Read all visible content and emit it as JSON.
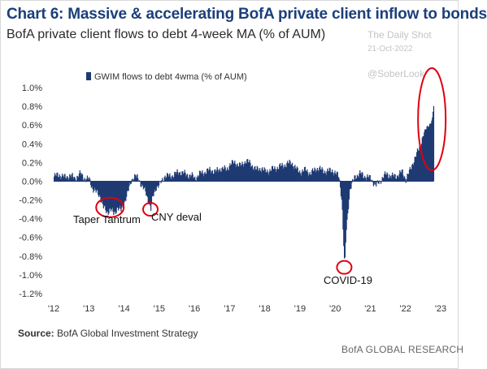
{
  "header": {
    "title": "Chart 6: Massive & accelerating BofA private client inflow to bonds",
    "subtitle": "BofA private client flows to debt 4-week MA (% of AUM)"
  },
  "watermark": {
    "line1": "The Daily Shot",
    "line2": "21-Oct-2022",
    "line3": "@SoberLook"
  },
  "footer": {
    "source_label": "Source:",
    "source_text": "BofA Global Investment Strategy",
    "brand": "BofA GLOBAL RESEARCH"
  },
  "colors": {
    "series": "#1f3a73",
    "title": "#1c3f7a",
    "highlight": "#e0000f"
  },
  "chart_data": {
    "type": "area",
    "title": "Chart 6: Massive & accelerating BofA private client inflow to bonds",
    "subtitle": "BofA private client flows to debt 4-week MA (% of AUM)",
    "xlabel": "",
    "ylabel": "",
    "x_ticks": [
      "'12",
      "'13",
      "'14",
      "'15",
      "'16",
      "'17",
      "'18",
      "'19",
      "'20",
      "'21",
      "'22",
      "'23"
    ],
    "y_ticks": [
      "1.0%",
      "0.8%",
      "0.6%",
      "0.4%",
      "0.2%",
      "0.0%",
      "-0.2%",
      "-0.4%",
      "-0.6%",
      "-0.8%",
      "-1.0%",
      "-1.2%"
    ],
    "ylim": [
      -1.2,
      1.0
    ],
    "xlim": [
      2012,
      2023
    ],
    "grid": false,
    "legend_position": "top-left",
    "series": [
      {
        "name": "GWIM flows to debt 4wma (% of AUM)",
        "x": [
          2012.0,
          2012.15,
          2012.3,
          2012.45,
          2012.6,
          2012.75,
          2012.9,
          2013.0,
          2013.1,
          2013.2,
          2013.3,
          2013.4,
          2013.5,
          2013.6,
          2013.7,
          2013.8,
          2013.9,
          2014.0,
          2014.1,
          2014.2,
          2014.3,
          2014.4,
          2014.5,
          2014.6,
          2014.7,
          2014.75,
          2014.8,
          2014.9,
          2015.0,
          2015.15,
          2015.3,
          2015.45,
          2015.6,
          2015.75,
          2015.9,
          2016.0,
          2016.15,
          2016.3,
          2016.45,
          2016.6,
          2016.75,
          2016.9,
          2017.0,
          2017.15,
          2017.3,
          2017.45,
          2017.6,
          2017.75,
          2017.9,
          2018.0,
          2018.15,
          2018.3,
          2018.45,
          2018.6,
          2018.75,
          2018.9,
          2019.0,
          2019.15,
          2019.3,
          2019.45,
          2019.6,
          2019.75,
          2019.9,
          2020.0,
          2020.1,
          2020.18,
          2020.22,
          2020.26,
          2020.3,
          2020.4,
          2020.55,
          2020.7,
          2020.85,
          2021.0,
          2021.15,
          2021.3,
          2021.45,
          2021.6,
          2021.75,
          2021.9,
          2022.0,
          2022.1,
          2022.2,
          2022.3,
          2022.4,
          2022.5,
          2022.6,
          2022.7,
          2022.75,
          2022.8
        ],
        "values": [
          0.05,
          0.07,
          0.04,
          0.06,
          0.03,
          0.08,
          0.02,
          0.02,
          -0.08,
          -0.12,
          -0.15,
          -0.28,
          -0.33,
          -0.3,
          -0.35,
          -0.28,
          -0.32,
          -0.22,
          -0.12,
          0.02,
          0.05,
          0.03,
          -0.05,
          -0.12,
          -0.22,
          -0.3,
          -0.18,
          -0.06,
          -0.04,
          0.06,
          0.05,
          0.08,
          0.1,
          0.07,
          0.06,
          0.03,
          0.08,
          0.1,
          0.12,
          0.1,
          0.14,
          0.12,
          0.18,
          0.2,
          0.16,
          0.22,
          0.18,
          0.12,
          0.14,
          0.1,
          0.12,
          0.14,
          0.16,
          0.18,
          0.2,
          0.12,
          0.1,
          0.12,
          0.08,
          0.14,
          0.12,
          0.1,
          0.12,
          0.08,
          0.05,
          -0.2,
          -0.6,
          -0.92,
          -0.55,
          -0.1,
          0.05,
          0.08,
          0.05,
          0.03,
          -0.05,
          0.02,
          0.08,
          0.05,
          0.06,
          0.1,
          0.02,
          0.1,
          0.2,
          0.28,
          0.38,
          0.5,
          0.58,
          0.62,
          0.66,
          0.85
        ]
      }
    ],
    "annotations": [
      {
        "text": "Taper Tantrum",
        "x": 2013.6,
        "y": -0.28
      },
      {
        "text": "CNY deval",
        "x": 2014.75,
        "y": -0.3
      },
      {
        "text": "COVID-19",
        "x": 2020.26,
        "y": -0.92
      },
      {
        "text": "",
        "x": 2022.75,
        "y": 0.52
      }
    ]
  }
}
